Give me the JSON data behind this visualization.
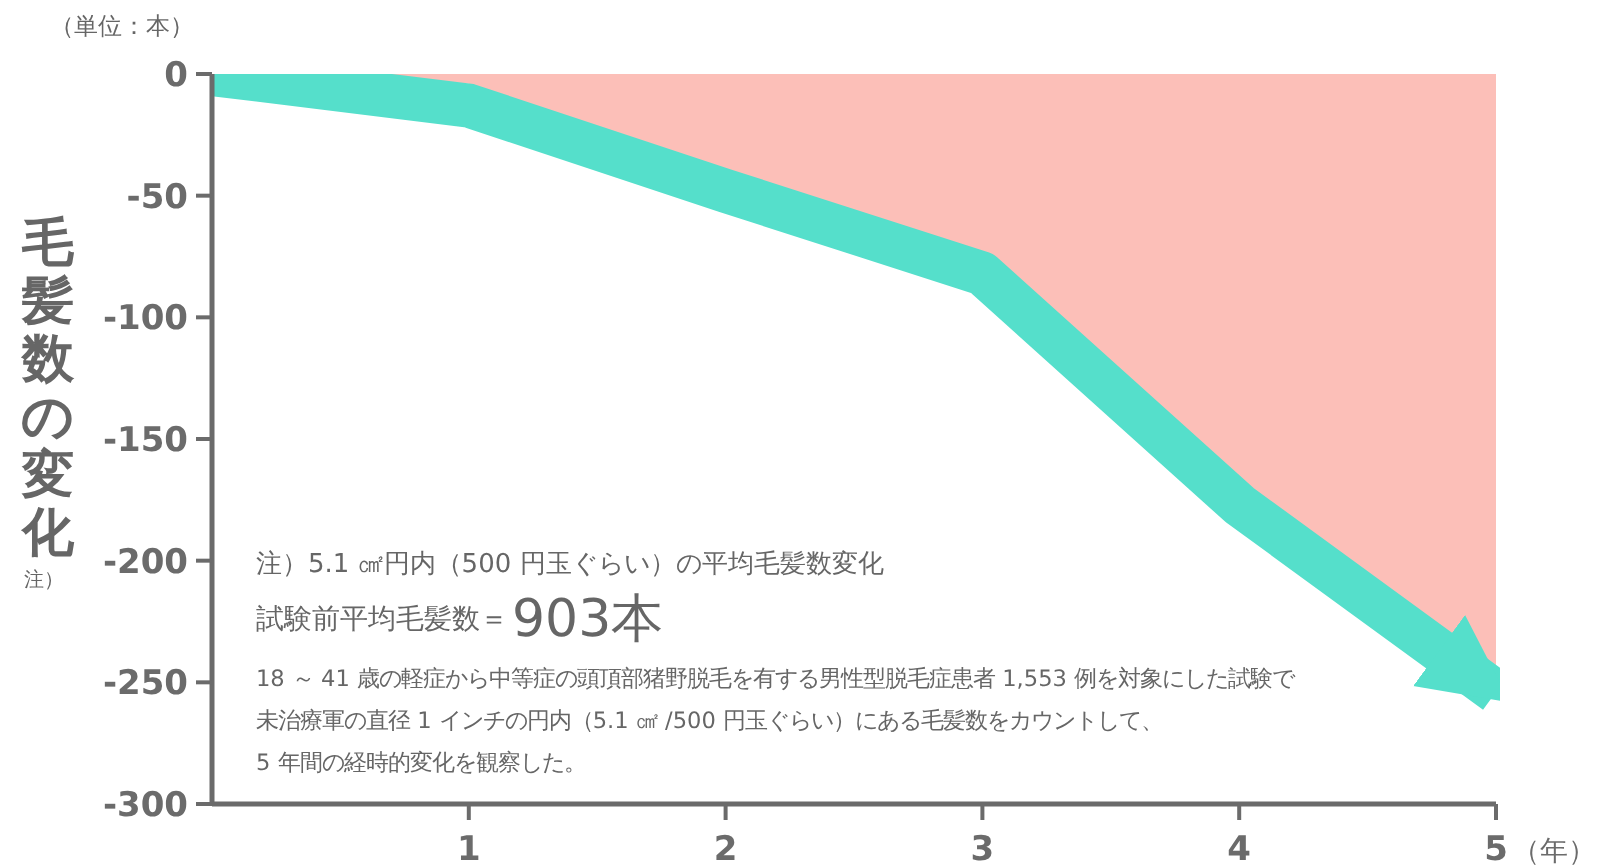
{
  "chart_data": {
    "type": "line",
    "ylabel": "毛髪数の変化",
    "xlabel": "（年）",
    "xlim": [
      0,
      5
    ],
    "ylim": [
      -300,
      0
    ],
    "xticks": [
      1,
      2,
      3,
      4,
      5
    ],
    "yticks": [
      0,
      -50,
      -100,
      -150,
      -200,
      -250,
      -300
    ],
    "legend": false,
    "grid": false,
    "marker": "none",
    "series": [
      {
        "type": "area",
        "color": "#fcbfb8",
        "x": [
          0.55,
          1,
          3,
          4,
          5
        ],
        "values": [
          0,
          -4,
          -75,
          -172,
          -257
        ]
      },
      {
        "color": "#55dfcb",
        "x": [
          0,
          1,
          2,
          3,
          4,
          5
        ],
        "values": [
          0,
          -13,
          -48,
          -82,
          -177,
          -254
        ]
      }
    ],
    "annotations": [
      "（単位：本）",
      "注）",
      "注）5.1 ㎠円内（500 円玉ぐらい）の平均毛髪数変化",
      "試験前平均毛髪数＝",
      "903本",
      "18 ～ 41 歳の軽症から中等症の頭頂部猪野脱毛を有する男性型脱毛症患者 1,553 例を対象にした試験で",
      "未治療軍の直径 1 インチの円内（5.1 ㎠ /500 円玉ぐらい）にある毛髪数をカウントして、",
      "5 年間の経時的変化を観察した。"
    ]
  }
}
